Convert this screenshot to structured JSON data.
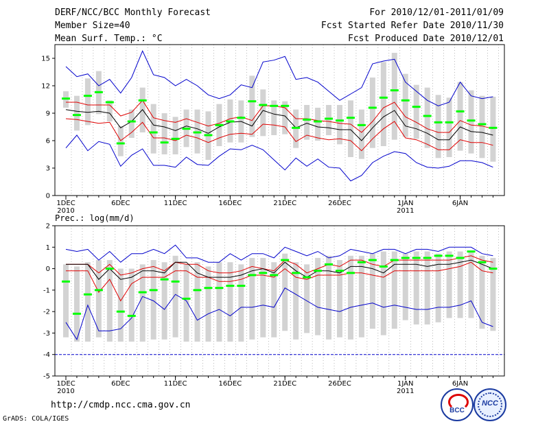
{
  "header": {
    "title": "DERF/NCC/BCC Monthly Forecast",
    "member_size": "Member Size=40",
    "temp_label": "Mean Surf. Temp.: °C",
    "period": "For 2010/12/01-2011/01/09",
    "started": "Fcst Started Refer Date 2010/11/30",
    "produced": "Fcst Produced Date 2010/12/01"
  },
  "footer": {
    "url": "http://cmdp.ncc.cma.gov.cn",
    "credit": "GrADS: COLA/IGES",
    "logo_bcc": "BCC",
    "logo_ncc": "NCC"
  },
  "colors": {
    "box": "#d3d3d3",
    "mean": "#00ff00",
    "ens": "#000000",
    "spread": "#e00000",
    "range": "#0000cc"
  },
  "chart_data": [
    {
      "type": "box",
      "title": "Mean Surf. Temp.: °C",
      "x_tick_labels": [
        "1DEC",
        "6DEC",
        "11DEC",
        "16DEC",
        "21DEC",
        "26DEC",
        "1JAN",
        "6JAN"
      ],
      "x_tick_sublabels": [
        "2010",
        "",
        "",
        "",
        "",
        "",
        "2011",
        ""
      ],
      "x_tick_days": [
        1,
        6,
        11,
        16,
        21,
        26,
        32,
        37
      ],
      "ylim": [
        0,
        16.5
      ],
      "yticks": [
        0,
        3,
        6,
        9,
        12,
        15
      ],
      "days": 40,
      "series": [
        {
          "name": "max",
          "values": [
            14.1,
            13.0,
            13.3,
            12.0,
            12.7,
            11.2,
            12.9,
            15.8,
            13.2,
            12.9,
            12.0,
            12.7,
            12.0,
            11.0,
            10.6,
            11.0,
            12.1,
            11.8,
            14.6,
            14.8,
            15.2,
            12.7,
            12.9,
            12.4,
            11.4,
            10.4,
            11.1,
            11.8,
            14.4,
            14.7,
            14.9,
            12.4,
            11.4,
            10.4,
            9.8,
            10.2,
            12.4,
            10.9,
            10.6,
            10.8
          ]
        },
        {
          "name": "upper",
          "values": [
            10.2,
            10.2,
            9.9,
            9.9,
            9.9,
            8.7,
            9.1,
            10.4,
            8.5,
            8.2,
            8.0,
            8.4,
            8.0,
            7.6,
            7.9,
            8.4,
            8.6,
            8.2,
            9.8,
            9.8,
            9.6,
            8.4,
            8.4,
            8.2,
            8.1,
            7.9,
            7.8,
            6.9,
            8.1,
            9.6,
            10.2,
            8.6,
            8.0,
            7.3,
            6.9,
            6.9,
            8.2,
            7.7,
            7.6,
            7.3
          ]
        },
        {
          "name": "ensemble mean",
          "values": [
            9.4,
            9.2,
            9.1,
            9.2,
            9.0,
            7.4,
            8.1,
            9.4,
            7.7,
            7.5,
            7.1,
            7.6,
            7.3,
            6.8,
            7.5,
            8.0,
            8.1,
            7.6,
            9.3,
            8.9,
            8.7,
            7.4,
            7.9,
            7.5,
            7.4,
            7.2,
            7.2,
            6.0,
            7.4,
            8.6,
            9.3,
            7.6,
            7.3,
            6.8,
            6.1,
            6.1,
            7.5,
            7.0,
            6.9,
            6.6
          ]
        },
        {
          "name": "lower",
          "values": [
            8.4,
            8.3,
            8.1,
            7.9,
            8.0,
            6.0,
            6.9,
            8.0,
            6.3,
            6.3,
            6.0,
            6.6,
            6.3,
            5.8,
            6.3,
            6.7,
            6.8,
            6.7,
            7.8,
            7.7,
            7.5,
            5.9,
            6.6,
            6.3,
            6.1,
            6.2,
            6.0,
            4.9,
            6.2,
            7.3,
            8.1,
            6.3,
            6.1,
            5.6,
            5.0,
            5.0,
            6.1,
            5.8,
            5.8,
            5.5
          ]
        },
        {
          "name": "min",
          "values": [
            5.2,
            6.6,
            4.9,
            5.9,
            5.6,
            3.2,
            4.4,
            5.1,
            3.3,
            3.3,
            3.1,
            4.2,
            3.4,
            3.3,
            4.3,
            5.1,
            5.0,
            5.5,
            5.0,
            3.9,
            2.8,
            4.1,
            3.2,
            4.0,
            3.1,
            3.0,
            1.6,
            2.2,
            3.6,
            4.3,
            4.8,
            4.6,
            3.6,
            3.1,
            3.0,
            3.2,
            3.8,
            3.8,
            3.6,
            3.1
          ]
        },
        {
          "name": "member mean",
          "values": [
            10.6,
            8.8,
            10.9,
            11.3,
            10.2,
            5.7,
            8.1,
            10.4,
            6.9,
            5.8,
            6.2,
            7.3,
            6.9,
            6.6,
            7.7,
            8.1,
            8.5,
            10.3,
            9.9,
            9.8,
            9.8,
            7.4,
            8.3,
            8.1,
            8.4,
            8.2,
            8.5,
            7.7,
            9.6,
            10.7,
            11.5,
            10.4,
            9.7,
            8.7,
            8.0,
            8.0,
            9.2,
            8.2,
            7.8,
            7.4
          ]
        },
        {
          "name": "box high",
          "values": [
            11.4,
            10.9,
            12.8,
            13.6,
            10.4,
            7.6,
            9.4,
            11.8,
            10.0,
            9.0,
            8.6,
            9.4,
            9.4,
            9.2,
            10.0,
            10.5,
            10.4,
            13.1,
            11.6,
            10.4,
            10.3,
            9.4,
            9.9,
            9.6,
            9.9,
            9.9,
            10.4,
            9.4,
            12.9,
            14.6,
            15.6,
            13.3,
            12.1,
            11.8,
            11.0,
            10.7,
            12.4,
            11.5,
            10.9,
            10.8
          ]
        },
        {
          "name": "box low",
          "values": [
            9.6,
            7.1,
            7.7,
            8.9,
            8.1,
            4.3,
            6.3,
            6.9,
            4.6,
            4.5,
            4.5,
            5.3,
            4.6,
            3.9,
            5.4,
            5.8,
            5.8,
            6.4,
            6.5,
            6.6,
            6.7,
            5.2,
            6.1,
            6.0,
            6.6,
            5.6,
            4.2,
            4.0,
            5.2,
            5.4,
            6.1,
            6.4,
            6.2,
            5.2,
            4.1,
            4.2,
            4.9,
            4.6,
            4.1,
            3.7
          ]
        }
      ]
    },
    {
      "type": "box",
      "title": "Prec.: log(mm/d)",
      "x_tick_labels": [
        "1DEC",
        "6DEC",
        "11DEC",
        "16DEC",
        "21DEC",
        "26DEC",
        "1JAN",
        "6JAN"
      ],
      "x_tick_sublabels": [
        "2010",
        "",
        "",
        "",
        "",
        "",
        "2011",
        ""
      ],
      "x_tick_days": [
        1,
        6,
        11,
        16,
        21,
        26,
        32,
        37
      ],
      "ylim": [
        -5,
        2
      ],
      "yticks": [
        -5,
        -4,
        -3,
        -2,
        -1,
        0,
        1,
        2
      ],
      "days": 40,
      "series": [
        {
          "name": "max",
          "values": [
            0.9,
            0.8,
            0.9,
            0.4,
            0.8,
            0.3,
            0.7,
            0.7,
            0.9,
            0.7,
            1.1,
            0.5,
            0.5,
            0.3,
            0.3,
            0.7,
            0.4,
            0.7,
            0.7,
            0.5,
            1.0,
            0.8,
            0.6,
            0.8,
            0.5,
            0.6,
            0.9,
            0.8,
            0.7,
            0.9,
            0.9,
            0.7,
            0.9,
            0.9,
            0.8,
            1.0,
            1.0,
            1.0,
            0.7,
            0.6
          ]
        },
        {
          "name": "upper",
          "values": [
            0.2,
            0.2,
            0.2,
            -0.2,
            0.2,
            -0.3,
            -0.2,
            0.0,
            0.1,
            -0.1,
            0.3,
            0.2,
            0.2,
            -0.1,
            -0.2,
            -0.2,
            -0.1,
            0.1,
            0.0,
            -0.1,
            0.4,
            0.2,
            -0.2,
            0.0,
            0.2,
            0.1,
            0.4,
            0.4,
            0.2,
            0.1,
            0.4,
            0.4,
            0.4,
            0.4,
            0.4,
            0.4,
            0.5,
            0.6,
            0.4,
            0.3
          ]
        },
        {
          "name": "ensemble mean",
          "values": [
            0.2,
            0.2,
            0.2,
            -0.5,
            0.0,
            -0.5,
            -0.4,
            -0.1,
            -0.1,
            -0.2,
            0.3,
            0.3,
            -0.2,
            -0.4,
            -0.4,
            -0.4,
            -0.3,
            -0.1,
            0.0,
            -0.2,
            0.3,
            -0.1,
            -0.4,
            -0.1,
            -0.1,
            -0.2,
            0.1,
            0.1,
            0.0,
            -0.2,
            0.2,
            0.2,
            0.2,
            0.1,
            0.2,
            0.2,
            0.3,
            0.4,
            0.2,
            0.0
          ]
        },
        {
          "name": "lower",
          "values": [
            -0.1,
            -0.1,
            -0.1,
            -1.1,
            -0.5,
            -1.5,
            -0.7,
            -0.4,
            -0.4,
            -0.4,
            -0.1,
            -0.1,
            -0.4,
            -0.4,
            -0.6,
            -0.6,
            -0.5,
            -0.3,
            -0.3,
            -0.4,
            0.0,
            -0.4,
            -0.5,
            -0.3,
            -0.3,
            -0.3,
            -0.2,
            -0.2,
            -0.3,
            -0.4,
            -0.1,
            -0.1,
            -0.1,
            -0.1,
            -0.1,
            0.0,
            0.1,
            0.3,
            -0.1,
            -0.2
          ]
        },
        {
          "name": "min",
          "values": [
            -2.5,
            -3.3,
            -1.7,
            -2.9,
            -2.9,
            -2.8,
            -2.3,
            -1.3,
            -1.5,
            -1.9,
            -1.2,
            -1.5,
            -2.4,
            -2.1,
            -1.9,
            -2.2,
            -1.8,
            -1.8,
            -1.7,
            -1.8,
            -0.9,
            -1.2,
            -1.5,
            -1.8,
            -1.9,
            -2.0,
            -1.8,
            -1.7,
            -1.6,
            -1.8,
            -1.7,
            -1.8,
            -1.9,
            -1.9,
            -1.8,
            -1.8,
            -1.7,
            -1.5,
            -2.5,
            -2.7
          ]
        },
        {
          "name": "member mean",
          "values": [
            -0.6,
            -2.1,
            -1.2,
            -1.0,
            0.0,
            -2.0,
            -2.2,
            -1.1,
            -1.0,
            -0.5,
            -0.6,
            -1.4,
            -1.0,
            -0.9,
            -0.9,
            -0.8,
            -0.8,
            -0.3,
            -0.2,
            -0.3,
            0.4,
            -0.2,
            -0.4,
            -0.1,
            0.2,
            -0.1,
            -0.2,
            0.3,
            0.4,
            0.1,
            0.4,
            0.5,
            0.5,
            0.5,
            0.6,
            0.6,
            0.5,
            0.8,
            0.3,
            0.0
          ]
        },
        {
          "name": "box high",
          "values": [
            0.2,
            0.1,
            0.3,
            0.4,
            0.4,
            0.0,
            0.0,
            0.2,
            0.4,
            0.3,
            0.6,
            0.2,
            0.3,
            0.1,
            0.3,
            0.3,
            0.2,
            0.5,
            0.5,
            0.3,
            0.7,
            0.3,
            0.2,
            0.5,
            0.6,
            0.4,
            0.6,
            0.6,
            0.7,
            0.8,
            0.8,
            0.7,
            0.8,
            0.8,
            0.7,
            0.8,
            0.8,
            0.8,
            0.6,
            0.5
          ]
        },
        {
          "name": "box low",
          "values": [
            -3.2,
            -3.4,
            -3.4,
            -3.2,
            -3.4,
            -3.4,
            -3.4,
            -3.4,
            -3.3,
            -3.3,
            -3.2,
            -3.4,
            -3.4,
            -3.4,
            -3.4,
            -3.4,
            -3.4,
            -3.3,
            -3.2,
            -3.2,
            -2.9,
            -3.3,
            -3.0,
            -3.1,
            -3.3,
            -3.2,
            -3.3,
            -3.2,
            -2.8,
            -3.1,
            -2.8,
            -2.4,
            -2.6,
            -2.6,
            -2.5,
            -2.3,
            -2.3,
            -2.3,
            -2.8,
            -2.9
          ]
        }
      ],
      "baseline": -4
    }
  ]
}
